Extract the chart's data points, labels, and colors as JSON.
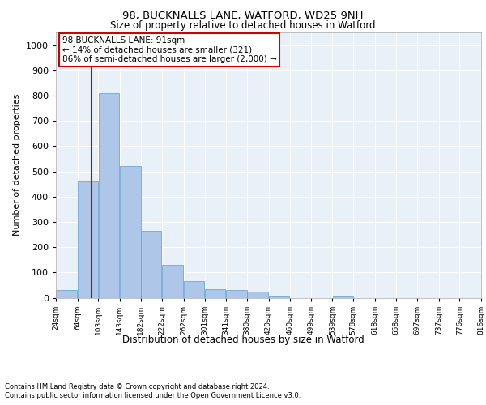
{
  "title1": "98, BUCKNALLS LANE, WATFORD, WD25 9NH",
  "title2": "Size of property relative to detached houses in Watford",
  "xlabel": "Distribution of detached houses by size in Watford",
  "ylabel": "Number of detached properties",
  "bar_color": "#aec6e8",
  "bar_edge_color": "#5a9fd4",
  "background_color": "#e8f0f8",
  "grid_color": "#ffffff",
  "vline_color": "#cc0000",
  "vline_x": 91,
  "annotation_box_text": "98 BUCKNALLS LANE: 91sqm\n← 14% of detached houses are smaller (321)\n86% of semi-detached houses are larger (2,000) →",
  "footnote1": "Contains HM Land Registry data © Crown copyright and database right 2024.",
  "footnote2": "Contains public sector information licensed under the Open Government Licence v3.0.",
  "bins_left": [
    24,
    64,
    103,
    143,
    182,
    222,
    262,
    301,
    341,
    380,
    420,
    460,
    499,
    539,
    578,
    618,
    658,
    697,
    737,
    776
  ],
  "bin_width": 39,
  "bar_heights": [
    30,
    460,
    810,
    520,
    265,
    130,
    65,
    35,
    30,
    25,
    5,
    0,
    0,
    5,
    0,
    0,
    0,
    0,
    0,
    0
  ],
  "ylim": [
    0,
    1050
  ],
  "yticks": [
    0,
    100,
    200,
    300,
    400,
    500,
    600,
    700,
    800,
    900,
    1000
  ],
  "xlim": [
    24,
    816
  ],
  "xtick_labels": [
    "24sqm",
    "64sqm",
    "103sqm",
    "143sqm",
    "182sqm",
    "222sqm",
    "262sqm",
    "301sqm",
    "341sqm",
    "380sqm",
    "420sqm",
    "460sqm",
    "499sqm",
    "539sqm",
    "578sqm",
    "618sqm",
    "658sqm",
    "697sqm",
    "737sqm",
    "776sqm",
    "816sqm"
  ]
}
